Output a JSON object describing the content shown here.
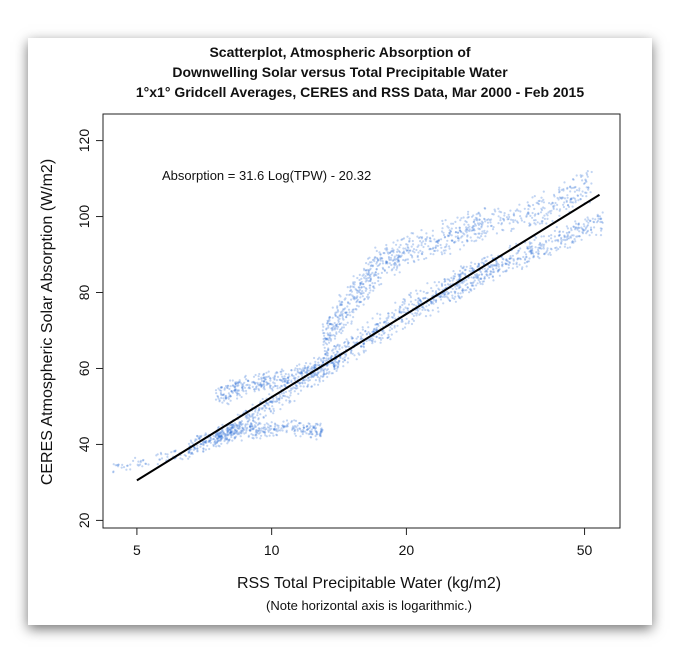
{
  "chart_data": {
    "type": "scatter",
    "title": [
      "Scatterplot, Atmospheric Absorption of",
      "Downwelling Solar versus Total Precipitable Water",
      "1°x1° Gridcell Averages, CERES and RSS Data, Mar 2000 - Feb 2015"
    ],
    "xlabel": "RSS Total Precipitable Water (kg/m2)",
    "xnote": "(Note horizontal axis is logarithmic.)",
    "ylabel": "CERES Atmospheric Solar Absorption (W/m2)",
    "xscale": "log",
    "xlim": [
      4.2,
      60
    ],
    "ylim": [
      18,
      127
    ],
    "xticks": [
      5,
      10,
      20,
      50
    ],
    "yticks": [
      20,
      40,
      60,
      80,
      100,
      120
    ],
    "annotation": "Absorption = 31.6 Log(TPW) - 20.32",
    "fit": {
      "slope": 31.6,
      "intercept": -20.32,
      "x_range": [
        5,
        54
      ]
    },
    "point_color": "#3573d6",
    "line_color": "#000000",
    "density_bands": [
      {
        "name": "main",
        "count": 1400,
        "points": [
          [
            6.5,
            36,
            42
          ],
          [
            8,
            40,
            46
          ],
          [
            10,
            47,
            55
          ],
          [
            13,
            56,
            65
          ],
          [
            16,
            63,
            72
          ],
          [
            20,
            70,
            80
          ],
          [
            25,
            76,
            86
          ],
          [
            30,
            82,
            90
          ],
          [
            40,
            88,
            96
          ],
          [
            55,
            95,
            102
          ]
        ]
      },
      {
        "name": "upper",
        "count": 900,
        "points": [
          [
            13,
            62,
            74
          ],
          [
            15,
            70,
            84
          ],
          [
            17,
            80,
            92
          ],
          [
            20,
            86,
            96
          ],
          [
            25,
            90,
            100
          ],
          [
            30,
            93,
            103
          ],
          [
            40,
            97,
            107
          ],
          [
            52,
            102,
            114
          ]
        ]
      },
      {
        "name": "upper-arm",
        "count": 350,
        "points": [
          [
            7.5,
            48,
            56
          ],
          [
            8.5,
            52,
            58
          ],
          [
            10,
            54,
            60
          ],
          [
            12,
            55,
            62
          ],
          [
            14,
            58,
            66
          ]
        ]
      },
      {
        "name": "lower-arm",
        "count": 300,
        "points": [
          [
            7.5,
            40,
            45
          ],
          [
            9,
            41,
            46
          ],
          [
            11,
            42,
            47
          ],
          [
            13,
            41,
            46
          ]
        ]
      },
      {
        "name": "sparse",
        "count": 60,
        "points": [
          [
            4.4,
            32,
            35
          ],
          [
            5.5,
            34,
            38
          ],
          [
            6.5,
            36,
            40
          ]
        ]
      }
    ]
  }
}
